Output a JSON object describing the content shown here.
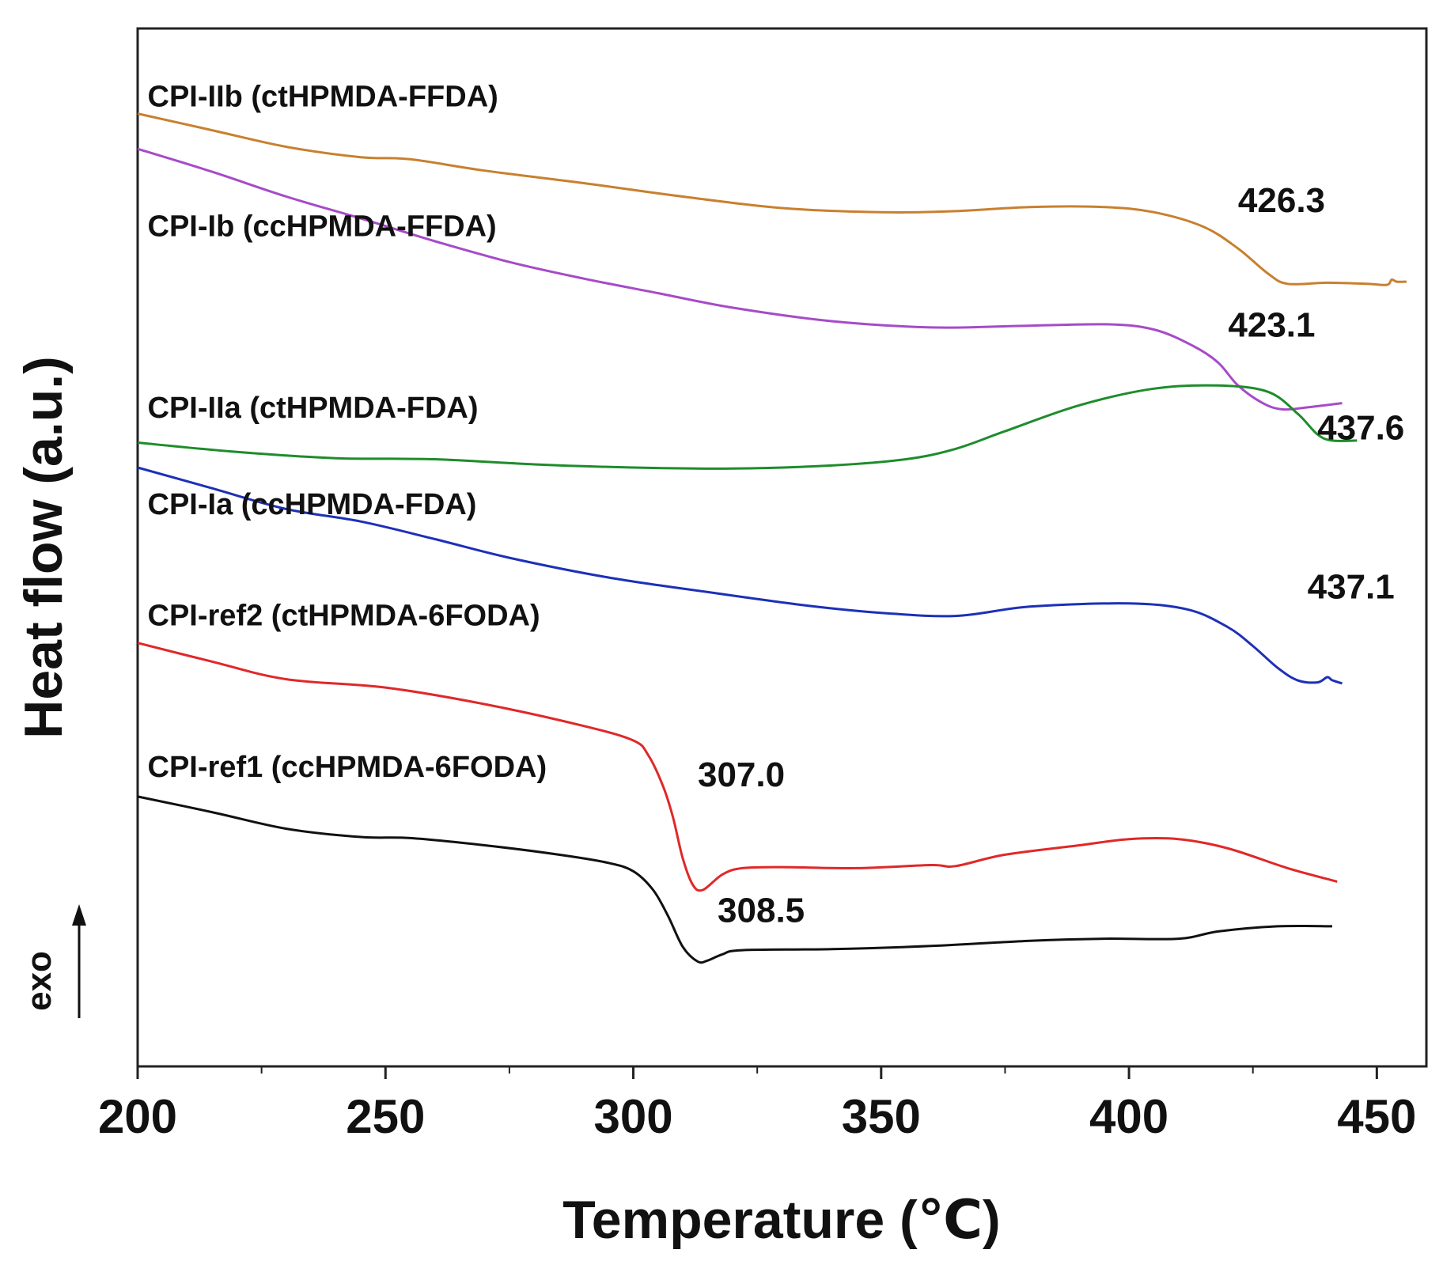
{
  "chart_data": {
    "type": "line",
    "title": "",
    "xlabel": "Temperature (℃)",
    "ylabel": "Heat flow (a.u.)",
    "xlim": [
      200,
      460
    ],
    "ylim": [
      0,
      100
    ],
    "x_ticks": [
      200,
      250,
      300,
      350,
      400,
      450
    ],
    "x_minor_ticks": [
      225,
      275,
      325,
      375,
      425
    ],
    "grid": false,
    "legend": "none",
    "exo_label": "exo",
    "series": [
      {
        "name": "CPI-IIb (ctHPMDA-FFDA)",
        "color": "#C8802F",
        "annotation": "426.3",
        "annotation_at": [
          422,
          82.3
        ],
        "label_at": [
          202,
          92.5
        ],
        "points": [
          [
            200,
            91.8
          ],
          [
            215,
            90.2
          ],
          [
            230,
            88.6
          ],
          [
            245,
            87.6
          ],
          [
            255,
            87.4
          ],
          [
            270,
            86.3
          ],
          [
            290,
            85.1
          ],
          [
            310,
            83.8
          ],
          [
            330,
            82.7
          ],
          [
            350,
            82.3
          ],
          [
            365,
            82.4
          ],
          [
            380,
            82.8
          ],
          [
            395,
            82.8
          ],
          [
            405,
            82.3
          ],
          [
            415,
            80.9
          ],
          [
            422,
            78.8
          ],
          [
            428,
            76.4
          ],
          [
            432,
            75.4
          ],
          [
            440,
            75.5
          ],
          [
            448,
            75.4
          ],
          [
            452,
            75.3
          ],
          [
            453,
            75.8
          ],
          [
            454,
            75.6
          ],
          [
            456,
            75.6
          ]
        ]
      },
      {
        "name": "CPI-Ib (ccHPMDA-FFDA)",
        "color": "#A64BC8",
        "annotation": "423.1",
        "annotation_at": [
          420,
          70.3
        ],
        "label_at": [
          202,
          80.0
        ],
        "points": [
          [
            200,
            88.4
          ],
          [
            215,
            86.2
          ],
          [
            230,
            83.8
          ],
          [
            245,
            81.7
          ],
          [
            260,
            79.5
          ],
          [
            275,
            77.5
          ],
          [
            290,
            75.9
          ],
          [
            305,
            74.5
          ],
          [
            320,
            73.1
          ],
          [
            340,
            71.8
          ],
          [
            360,
            71.2
          ],
          [
            375,
            71.3
          ],
          [
            395,
            71.5
          ],
          [
            405,
            71.0
          ],
          [
            413,
            69.4
          ],
          [
            418,
            67.8
          ],
          [
            422,
            65.6
          ],
          [
            427,
            63.9
          ],
          [
            431,
            63.3
          ],
          [
            436,
            63.5
          ],
          [
            443,
            63.9
          ]
        ]
      },
      {
        "name": "CPI-IIa (ctHPMDA-FDA)",
        "color": "#1E8C2B",
        "annotation": "437.6",
        "annotation_at": [
          438,
          60.4
        ],
        "label_at": [
          202,
          62.5
        ],
        "points": [
          [
            200,
            60.1
          ],
          [
            220,
            59.2
          ],
          [
            240,
            58.6
          ],
          [
            260,
            58.5
          ],
          [
            280,
            58.0
          ],
          [
            300,
            57.7
          ],
          [
            320,
            57.6
          ],
          [
            340,
            57.9
          ],
          [
            355,
            58.5
          ],
          [
            365,
            59.5
          ],
          [
            375,
            61.2
          ],
          [
            390,
            63.7
          ],
          [
            405,
            65.3
          ],
          [
            418,
            65.6
          ],
          [
            428,
            65.0
          ],
          [
            434,
            62.9
          ],
          [
            438,
            60.9
          ],
          [
            441,
            60.3
          ],
          [
            446,
            60.3
          ]
        ]
      },
      {
        "name": "CPI-Ia (ccHPMDA-FDA)",
        "color": "#1C30B8",
        "annotation": "437.1",
        "annotation_at": [
          436,
          45.1
        ],
        "label_at": [
          202,
          53.2
        ],
        "points": [
          [
            200,
            57.7
          ],
          [
            215,
            55.7
          ],
          [
            230,
            53.7
          ],
          [
            245,
            52.5
          ],
          [
            260,
            50.8
          ],
          [
            275,
            49.0
          ],
          [
            295,
            47.1
          ],
          [
            315,
            45.7
          ],
          [
            335,
            44.4
          ],
          [
            350,
            43.7
          ],
          [
            365,
            43.4
          ],
          [
            380,
            44.3
          ],
          [
            400,
            44.6
          ],
          [
            412,
            44.0
          ],
          [
            420,
            42.3
          ],
          [
            425,
            40.5
          ],
          [
            430,
            38.4
          ],
          [
            434,
            37.2
          ],
          [
            438,
            37.0
          ],
          [
            440,
            37.5
          ],
          [
            441,
            37.2
          ],
          [
            443,
            36.9
          ]
        ]
      },
      {
        "name": "CPI-ref2 (ctHPMDA-6FODA)",
        "color": "#E02828",
        "annotation": "307.0",
        "annotation_at": [
          313,
          27.0
        ],
        "label_at": [
          202,
          42.5
        ],
        "points": [
          [
            200,
            40.8
          ],
          [
            215,
            39.0
          ],
          [
            230,
            37.3
          ],
          [
            250,
            36.5
          ],
          [
            270,
            34.9
          ],
          [
            290,
            32.8
          ],
          [
            300,
            31.4
          ],
          [
            303,
            30.0
          ],
          [
            306,
            27.0
          ],
          [
            308,
            24.0
          ],
          [
            310,
            20.0
          ],
          [
            312,
            17.5
          ],
          [
            314,
            17.0
          ],
          [
            318,
            18.5
          ],
          [
            322,
            19.1
          ],
          [
            330,
            19.2
          ],
          [
            345,
            19.1
          ],
          [
            360,
            19.4
          ],
          [
            365,
            19.3
          ],
          [
            375,
            20.4
          ],
          [
            390,
            21.3
          ],
          [
            400,
            21.9
          ],
          [
            410,
            21.9
          ],
          [
            420,
            21.0
          ],
          [
            432,
            19.1
          ],
          [
            442,
            17.8
          ]
        ]
      },
      {
        "name": "CPI-ref1 (ccHPMDA-6FODA)",
        "color": "#111111",
        "annotation": "308.5",
        "annotation_at": [
          317,
          13.9
        ],
        "label_at": [
          202,
          27.9
        ],
        "points": [
          [
            200,
            26.0
          ],
          [
            215,
            24.5
          ],
          [
            230,
            22.9
          ],
          [
            245,
            22.1
          ],
          [
            255,
            22.0
          ],
          [
            270,
            21.3
          ],
          [
            285,
            20.4
          ],
          [
            295,
            19.6
          ],
          [
            300,
            18.8
          ],
          [
            304,
            17.0
          ],
          [
            307,
            14.5
          ],
          [
            310,
            11.5
          ],
          [
            313,
            10.1
          ],
          [
            315,
            10.2
          ],
          [
            318,
            10.8
          ],
          [
            322,
            11.2
          ],
          [
            340,
            11.3
          ],
          [
            360,
            11.6
          ],
          [
            380,
            12.1
          ],
          [
            395,
            12.3
          ],
          [
            410,
            12.3
          ],
          [
            418,
            13.0
          ],
          [
            430,
            13.5
          ],
          [
            441,
            13.5
          ]
        ]
      }
    ]
  }
}
